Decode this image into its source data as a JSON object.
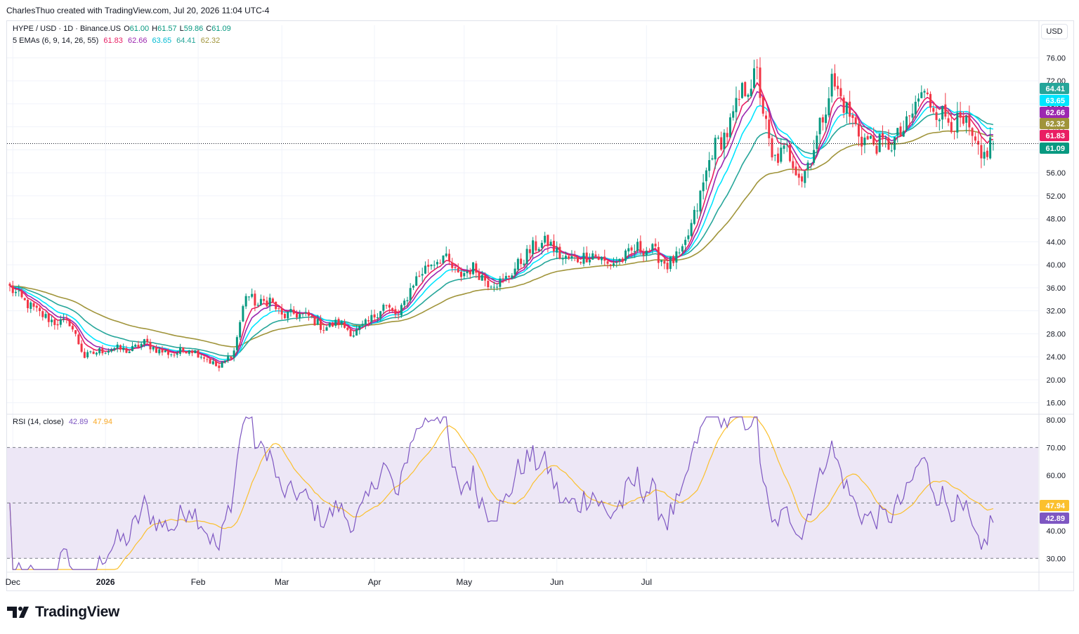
{
  "header": {
    "attribution": "CharlesThuo created with TradingView.com, Jul 20, 2026 11:04 UTC-4"
  },
  "legend": {
    "symbol": "HYPE / USD · 1D · Binance.US",
    "o_label": "O",
    "o": "61.00",
    "h_label": "H",
    "h": "61.57",
    "l_label": "L",
    "l": "59.86",
    "c_label": "C",
    "c": "61.09",
    "ema_label": "5 EMAs (6, 9, 14, 26, 55)",
    "ema_values": [
      "61.83",
      "62.66",
      "63.65",
      "64.41",
      "62.32"
    ],
    "rsi_label": "RSI (14, close)",
    "rsi_value": "42.89",
    "rsi_ma_value": "47.94"
  },
  "currency_button": "USD",
  "footer": {
    "brand": "TradingView"
  },
  "colors": {
    "up": "#089981",
    "down": "#f23645",
    "ema6": "#e91e63",
    "ema9": "#9c27b0",
    "ema14": "#00e5ff",
    "ema26": "#26a69a",
    "ema55": "#a0943a",
    "rsi": "#7e57c2",
    "rsi_ma": "#fbc02d",
    "rsi_band": "#ede7f6"
  },
  "chart_data": [
    {
      "type": "candlestick",
      "title": "HYPE / USD · 1D · Binance.US",
      "ylim": [
        14,
        78
      ],
      "price_ticks": [
        "76.00",
        "72.00",
        "68.00",
        "64.00",
        "60.00",
        "56.00",
        "52.00",
        "48.00",
        "44.00",
        "40.00",
        "36.00",
        "32.00",
        "28.00",
        "24.00",
        "20.00",
        "16.00"
      ],
      "price_tags": [
        {
          "label": "64.41",
          "value": 64.41,
          "color": "#26a69a"
        },
        {
          "label": "63.65",
          "value": 63.65,
          "color": "#00e5ff"
        },
        {
          "label": "62.66",
          "value": 62.66,
          "color": "#9c27b0"
        },
        {
          "label": "62.32",
          "value": 62.32,
          "color": "#a0943a"
        },
        {
          "label": "61.83",
          "value": 61.83,
          "color": "#e91e63"
        },
        {
          "label": "61.09",
          "value": 61.09,
          "color": "#089981"
        }
      ],
      "last_price": 61.09,
      "x_labels": [
        {
          "label": "Dec",
          "date": "2025-12-01"
        },
        {
          "label": "2026",
          "date": "2026-01-01"
        },
        {
          "label": "Feb",
          "date": "2026-02-01"
        },
        {
          "label": "Mar",
          "date": "2026-03-01"
        },
        {
          "label": "Apr",
          "date": "2026-04-01"
        },
        {
          "label": "May",
          "date": "2026-05-01"
        },
        {
          "label": "Jun",
          "date": "2026-06-01"
        },
        {
          "label": "Jul",
          "date": "2026-07-01"
        }
      ],
      "start_date": "2025-11-30",
      "close_anchors": [
        [
          0,
          36
        ],
        [
          5,
          33.5
        ],
        [
          10,
          31.5
        ],
        [
          15,
          30
        ],
        [
          20,
          30
        ],
        [
          25,
          24
        ],
        [
          30,
          25
        ],
        [
          35,
          25.5
        ],
        [
          40,
          25
        ],
        [
          45,
          26.5
        ],
        [
          50,
          25
        ],
        [
          55,
          24.5
        ],
        [
          60,
          25.5
        ],
        [
          65,
          24
        ],
        [
          70,
          22
        ],
        [
          75,
          25
        ],
        [
          79,
          35
        ],
        [
          83,
          33
        ],
        [
          87,
          34
        ],
        [
          91,
          31
        ],
        [
          95,
          31.5
        ],
        [
          100,
          31
        ],
        [
          105,
          29
        ],
        [
          110,
          30
        ],
        [
          115,
          28
        ],
        [
          120,
          30
        ],
        [
          125,
          33
        ],
        [
          130,
          31
        ],
        [
          135,
          37
        ],
        [
          140,
          40
        ],
        [
          145,
          41.5
        ],
        [
          150,
          38
        ],
        [
          155,
          39.5
        ],
        [
          160,
          37
        ],
        [
          165,
          37
        ],
        [
          170,
          40
        ],
        [
          175,
          43
        ],
        [
          180,
          44
        ],
        [
          185,
          41
        ],
        [
          190,
          41
        ],
        [
          195,
          42
        ],
        [
          200,
          40
        ],
        [
          205,
          41
        ],
        [
          210,
          43
        ],
        [
          215,
          42.5
        ],
        [
          220,
          40
        ],
        [
          225,
          42
        ],
        [
          230,
          50
        ],
        [
          235,
          60
        ],
        [
          240,
          63
        ],
        [
          245,
          70
        ],
        [
          250,
          73
        ],
        [
          255,
          58
        ],
        [
          260,
          60
        ],
        [
          265,
          55
        ],
        [
          270,
          62
        ],
        [
          275,
          72
        ],
        [
          280,
          67
        ],
        [
          285,
          62
        ],
        [
          290,
          61
        ],
        [
          295,
          61
        ],
        [
          300,
          64
        ],
        [
          305,
          70
        ],
        [
          310,
          67
        ],
        [
          315,
          65
        ],
        [
          320,
          64
        ],
        [
          325,
          58
        ],
        [
          328,
          61.09
        ]
      ],
      "ema_last_values": {
        "ema6": 61.83,
        "ema9": 62.66,
        "ema14": 63.65,
        "ema26": 64.41,
        "ema55": 62.32
      }
    },
    {
      "type": "line",
      "title": "RSI (14, close)",
      "ylim": [
        25,
        82
      ],
      "ticks": [
        "80.00",
        "70.00",
        "60.00",
        "50.00",
        "40.00",
        "30.00"
      ],
      "bands": [
        30,
        50,
        70
      ],
      "series": [
        {
          "name": "RSI",
          "last": 42.89
        },
        {
          "name": "RSI MA",
          "last": 47.94
        }
      ],
      "tags": [
        {
          "label": "47.94",
          "value": 47.94,
          "color": "#fbc02d"
        },
        {
          "label": "42.89",
          "value": 42.89,
          "color": "#7e57c2"
        }
      ]
    }
  ]
}
